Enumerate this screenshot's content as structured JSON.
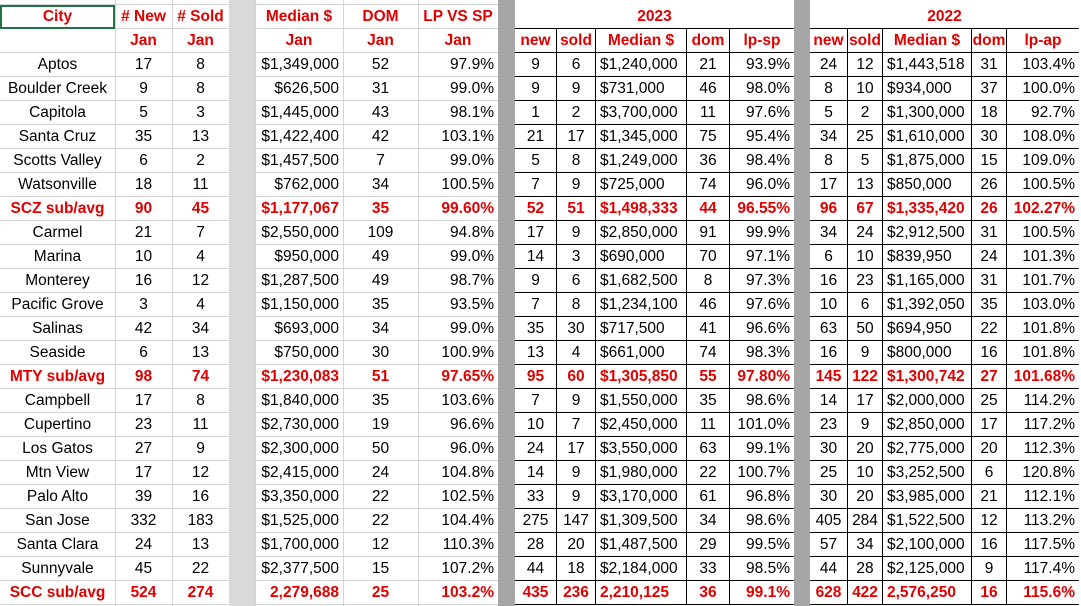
{
  "headers": {
    "row1": [
      "City",
      "# New",
      "# Sold",
      "Median $",
      "DOM",
      "LP VS SP"
    ],
    "row2": [
      "",
      "Jan",
      "Jan",
      "Jan",
      "Jan",
      "Jan"
    ],
    "year2023": "2023",
    "year2022": "2022",
    "sub2023": [
      "new",
      "sold",
      "Median $",
      "dom",
      "lp-sp"
    ],
    "sub2022": [
      "new",
      "sold",
      "Median $",
      "dom",
      "lp-ap"
    ]
  },
  "rows": [
    {
      "city": "Aptos",
      "new": "17",
      "sold": "8",
      "median": "$1,349,000",
      "dom": "52",
      "lpsp": "97.9%",
      "y23": [
        "9",
        "6",
        "$1,240,000",
        "21",
        "93.9%"
      ],
      "y22": [
        "24",
        "12",
        "$1,443,518",
        "31",
        "103.4%"
      ]
    },
    {
      "city": "Boulder Creek",
      "new": "9",
      "sold": "8",
      "median": "$626,500",
      "dom": "31",
      "lpsp": "99.0%",
      "y23": [
        "9",
        "9",
        "$731,000",
        "46",
        "98.0%"
      ],
      "y22": [
        "8",
        "10",
        "$934,000",
        "37",
        "100.0%"
      ]
    },
    {
      "city": "Capitola",
      "new": "5",
      "sold": "3",
      "median": "$1,445,000",
      "dom": "43",
      "lpsp": "98.1%",
      "y23": [
        "1",
        "2",
        "$3,700,000",
        "11",
        "97.6%"
      ],
      "y22": [
        "5",
        "2",
        "$1,300,000",
        "18",
        "92.7%"
      ]
    },
    {
      "city": "Santa Cruz",
      "new": "35",
      "sold": "13",
      "median": "$1,422,400",
      "dom": "42",
      "lpsp": "103.1%",
      "y23": [
        "21",
        "17",
        "$1,345,000",
        "75",
        "95.4%"
      ],
      "y22": [
        "34",
        "25",
        "$1,610,000",
        "30",
        "108.0%"
      ]
    },
    {
      "city": "Scotts Valley",
      "new": "6",
      "sold": "2",
      "median": "$1,457,500",
      "dom": "7",
      "lpsp": "99.0%",
      "y23": [
        "5",
        "8",
        "$1,249,000",
        "36",
        "98.4%"
      ],
      "y22": [
        "8",
        "5",
        "$1,875,000",
        "15",
        "109.0%"
      ]
    },
    {
      "city": "Watsonville",
      "new": "18",
      "sold": "11",
      "median": "$762,000",
      "dom": "34",
      "lpsp": "100.5%",
      "y23": [
        "7",
        "9",
        "$725,000",
        "74",
        "96.0%"
      ],
      "y22": [
        "17",
        "13",
        "$850,000",
        "26",
        "100.5%"
      ]
    },
    {
      "subtotal": true,
      "city": "SCZ sub/avg",
      "new": "90",
      "sold": "45",
      "median": "$1,177,067",
      "dom": "35",
      "lpsp": "99.60%",
      "y23": [
        "52",
        "51",
        "$1,498,333",
        "44",
        "96.55%"
      ],
      "y22": [
        "96",
        "67",
        "$1,335,420",
        "26",
        "102.27%"
      ]
    },
    {
      "city": "Carmel",
      "new": "21",
      "sold": "7",
      "median": "$2,550,000",
      "dom": "109",
      "lpsp": "94.8%",
      "y23": [
        "17",
        "9",
        "$2,850,000",
        "91",
        "99.9%"
      ],
      "y22": [
        "34",
        "24",
        "$2,912,500",
        "31",
        "100.5%"
      ]
    },
    {
      "city": "Marina",
      "new": "10",
      "sold": "4",
      "median": "$950,000",
      "dom": "49",
      "lpsp": "99.0%",
      "y23": [
        "14",
        "3",
        "$690,000",
        "70",
        "97.1%"
      ],
      "y22": [
        "6",
        "10",
        "$839,950",
        "24",
        "101.3%"
      ]
    },
    {
      "city": "Monterey",
      "new": "16",
      "sold": "12",
      "median": "$1,287,500",
      "dom": "49",
      "lpsp": "98.7%",
      "y23": [
        "9",
        "6",
        "$1,682,500",
        "8",
        "97.3%"
      ],
      "y22": [
        "16",
        "23",
        "$1,165,000",
        "31",
        "101.7%"
      ]
    },
    {
      "city": "Pacific Grove",
      "new": "3",
      "sold": "4",
      "median": "$1,150,000",
      "dom": "35",
      "lpsp": "93.5%",
      "y23": [
        "7",
        "8",
        "$1,234,100",
        "46",
        "97.6%"
      ],
      "y22": [
        "10",
        "6",
        "$1,392,050",
        "35",
        "103.0%"
      ]
    },
    {
      "city": "Salinas",
      "new": "42",
      "sold": "34",
      "median": "$693,000",
      "dom": "34",
      "lpsp": "99.0%",
      "y23": [
        "35",
        "30",
        "$717,500",
        "41",
        "96.6%"
      ],
      "y22": [
        "63",
        "50",
        "$694,950",
        "22",
        "101.8%"
      ]
    },
    {
      "city": "Seaside",
      "new": "6",
      "sold": "13",
      "median": "$750,000",
      "dom": "30",
      "lpsp": "100.9%",
      "y23": [
        "13",
        "4",
        "$661,000",
        "74",
        "98.3%"
      ],
      "y22": [
        "16",
        "9",
        "$800,000",
        "16",
        "101.8%"
      ]
    },
    {
      "subtotal": true,
      "city": "MTY sub/avg",
      "new": "98",
      "sold": "74",
      "median": "$1,230,083",
      "dom": "51",
      "lpsp": "97.65%",
      "y23": [
        "95",
        "60",
        "$1,305,850",
        "55",
        "97.80%"
      ],
      "y22": [
        "145",
        "122",
        "$1,300,742",
        "27",
        "101.68%"
      ]
    },
    {
      "city": "Campbell",
      "new": "17",
      "sold": "8",
      "median": "$1,840,000",
      "dom": "35",
      "lpsp": "103.6%",
      "y23": [
        "7",
        "9",
        "$1,550,000",
        "35",
        "98.6%"
      ],
      "y22": [
        "14",
        "17",
        "$2,000,000",
        "25",
        "114.2%"
      ]
    },
    {
      "city": "Cupertino",
      "new": "23",
      "sold": "11",
      "median": "$2,730,000",
      "dom": "19",
      "lpsp": "96.6%",
      "y23": [
        "10",
        "7",
        "$2,450,000",
        "11",
        "101.0%"
      ],
      "y22": [
        "23",
        "9",
        "$2,850,000",
        "17",
        "117.2%"
      ]
    },
    {
      "city": "Los Gatos",
      "new": "27",
      "sold": "9",
      "median": "$2,300,000",
      "dom": "50",
      "lpsp": "96.0%",
      "y23": [
        "24",
        "17",
        "$3,550,000",
        "63",
        "99.1%"
      ],
      "y22": [
        "30",
        "20",
        "$2,775,000",
        "20",
        "112.3%"
      ]
    },
    {
      "city": "Mtn View",
      "new": "17",
      "sold": "12",
      "median": "$2,415,000",
      "dom": "24",
      "lpsp": "104.8%",
      "y23": [
        "14",
        "9",
        "$1,980,000",
        "22",
        "100.7%"
      ],
      "y22": [
        "25",
        "10",
        "$3,252,500",
        "6",
        "120.8%"
      ]
    },
    {
      "city": "Palo Alto",
      "new": "39",
      "sold": "16",
      "median": "$3,350,000",
      "dom": "22",
      "lpsp": "102.5%",
      "y23": [
        "33",
        "9",
        "$3,170,000",
        "61",
        "96.8%"
      ],
      "y22": [
        "30",
        "20",
        "$3,985,000",
        "21",
        "112.1%"
      ]
    },
    {
      "city": "San Jose",
      "new": "332",
      "sold": "183",
      "median": "$1,525,000",
      "dom": "22",
      "lpsp": "104.4%",
      "y23": [
        "275",
        "147",
        "$1,309,500",
        "34",
        "98.6%"
      ],
      "y22": [
        "405",
        "284",
        "$1,522,500",
        "12",
        "113.2%"
      ]
    },
    {
      "city": "Santa Clara",
      "new": "24",
      "sold": "13",
      "median": "$1,700,000",
      "dom": "12",
      "lpsp": "110.3%",
      "y23": [
        "28",
        "20",
        "$1,487,500",
        "29",
        "99.5%"
      ],
      "y22": [
        "57",
        "34",
        "$2,100,000",
        "16",
        "117.5%"
      ]
    },
    {
      "city": "Sunnyvale",
      "new": "45",
      "sold": "22",
      "median": "$2,377,500",
      "dom": "15",
      "lpsp": "107.2%",
      "y23": [
        "44",
        "18",
        "$2,184,000",
        "33",
        "98.5%"
      ],
      "y22": [
        "44",
        "28",
        "$2,125,000",
        "9",
        "117.4%"
      ]
    },
    {
      "subtotal": true,
      "city": "SCC sub/avg",
      "new": "524",
      "sold": "274",
      "median": "2,279,688",
      "dom": "25",
      "lpsp": "103.2%",
      "y23": [
        "435",
        "236",
        "2,210,125",
        "36",
        "99.1%"
      ],
      "y22": [
        "628",
        "422",
        "2,576,250",
        "16",
        "115.6%"
      ]
    }
  ],
  "colors": {
    "header_red": "#e00000",
    "gap_light": "#d9d9d9",
    "gap_dark": "#a6a6a6",
    "selection": "#217346"
  }
}
